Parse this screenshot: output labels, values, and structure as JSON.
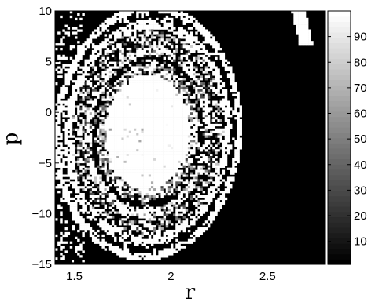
{
  "chart_data": {
    "type": "heatmap",
    "title": "",
    "xlabel": "r",
    "ylabel": "p",
    "xlim": [
      1.4,
      2.8
    ],
    "ylim": [
      -15,
      10
    ],
    "xticks": [
      1.5,
      2,
      2.5
    ],
    "xtick_labels": [
      "1.5",
      "2",
      "2.5"
    ],
    "yticks": [
      10,
      5,
      0,
      -5,
      -10,
      -15
    ],
    "ytick_labels": [
      "10",
      "5",
      "0",
      "−5",
      "−10",
      "−15"
    ],
    "colormap": "gray",
    "grid": false,
    "colorbar": {
      "range": [
        1,
        100
      ],
      "ticks": [
        90,
        80,
        70,
        60,
        50,
        40,
        30,
        20,
        10
      ],
      "tick_labels": [
        "90",
        "80",
        "70",
        "60",
        "50",
        "40",
        "30",
        "20",
        "10"
      ]
    },
    "grid_resolution": {
      "nx": 110,
      "ny": 110
    },
    "description_of_values": "Counts over the (r, p) plane: a large white core region around r≈1.9, p≈−2 with nested alternating black/white elliptical bands; speckled intermediate gray values throughout the annular bands; a white diagonal stripe in the upper-right corner."
  }
}
